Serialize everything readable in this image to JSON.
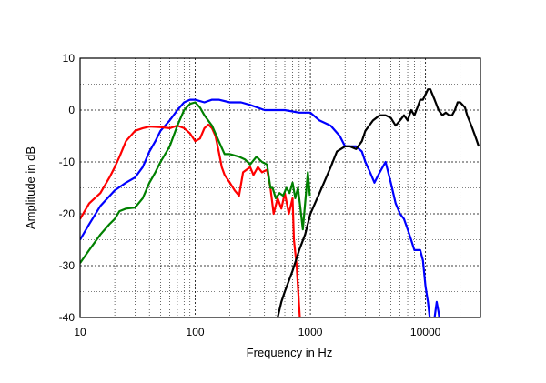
{
  "chart_data": {
    "type": "line",
    "title": "",
    "xlabel": "Frequency in Hz",
    "ylabel": "Amplitude in dB",
    "x_scale": "log",
    "xlim": [
      10,
      30000
    ],
    "ylim": [
      -40,
      10
    ],
    "x_ticks": [
      10,
      100,
      1000,
      10000
    ],
    "x_tick_labels": [
      "10",
      "100",
      "1000",
      "10000"
    ],
    "y_ticks": [
      10,
      0,
      -10,
      -20,
      -30,
      -40
    ],
    "y_tick_labels": [
      "10",
      "0",
      "-10",
      "-20",
      "-30",
      "-40"
    ],
    "grid": true,
    "legend": false,
    "series": [
      {
        "color": "#0000ff",
        "points": [
          [
            10,
            -25
          ],
          [
            12,
            -22
          ],
          [
            15,
            -18.5
          ],
          [
            20,
            -15.5
          ],
          [
            25,
            -14
          ],
          [
            30,
            -13
          ],
          [
            35,
            -11
          ],
          [
            40,
            -8
          ],
          [
            45,
            -6
          ],
          [
            50,
            -4
          ],
          [
            60,
            -2
          ],
          [
            70,
            0
          ],
          [
            80,
            1.5
          ],
          [
            90,
            2
          ],
          [
            100,
            2
          ],
          [
            120,
            1.5
          ],
          [
            140,
            2
          ],
          [
            160,
            2
          ],
          [
            200,
            1.5
          ],
          [
            250,
            1.5
          ],
          [
            300,
            1
          ],
          [
            400,
            0
          ],
          [
            500,
            0
          ],
          [
            600,
            0
          ],
          [
            800,
            -0.5
          ],
          [
            1000,
            -0.5
          ],
          [
            1200,
            -2
          ],
          [
            1500,
            -3
          ],
          [
            1800,
            -5
          ],
          [
            2000,
            -7
          ],
          [
            2500,
            -7
          ],
          [
            2800,
            -8
          ],
          [
            3000,
            -10
          ],
          [
            3300,
            -12
          ],
          [
            3600,
            -14
          ],
          [
            4000,
            -12
          ],
          [
            4500,
            -10
          ],
          [
            5000,
            -14
          ],
          [
            5500,
            -18
          ],
          [
            6000,
            -20
          ],
          [
            6500,
            -21
          ],
          [
            7000,
            -23
          ],
          [
            7500,
            -25
          ],
          [
            8000,
            -27
          ],
          [
            9000,
            -27
          ],
          [
            9500,
            -29
          ],
          [
            10000,
            -34
          ],
          [
            10500,
            -37
          ],
          [
            11000,
            -41
          ],
          [
            12000,
            -40
          ],
          [
            12500,
            -37
          ],
          [
            13000,
            -39
          ],
          [
            13500,
            -42
          ]
        ]
      },
      {
        "color": "#ff0000",
        "points": [
          [
            10,
            -21
          ],
          [
            12,
            -18
          ],
          [
            15,
            -16
          ],
          [
            18,
            -13
          ],
          [
            20,
            -11
          ],
          [
            22,
            -9
          ],
          [
            25,
            -6
          ],
          [
            30,
            -4
          ],
          [
            35,
            -3.5
          ],
          [
            40,
            -3.2
          ],
          [
            50,
            -3.3
          ],
          [
            60,
            -3.5
          ],
          [
            70,
            -3
          ],
          [
            80,
            -3.5
          ],
          [
            90,
            -4.5
          ],
          [
            100,
            -6
          ],
          [
            110,
            -5.5
          ],
          [
            120,
            -3.5
          ],
          [
            130,
            -2.8
          ],
          [
            140,
            -3.5
          ],
          [
            150,
            -5
          ],
          [
            160,
            -8
          ],
          [
            170,
            -11
          ],
          [
            180,
            -12.5
          ],
          [
            200,
            -14
          ],
          [
            220,
            -15.5
          ],
          [
            240,
            -16.5
          ],
          [
            260,
            -12
          ],
          [
            300,
            -11
          ],
          [
            320,
            -12.5
          ],
          [
            350,
            -11
          ],
          [
            380,
            -12
          ],
          [
            420,
            -11.5
          ],
          [
            450,
            -15
          ],
          [
            480,
            -20
          ],
          [
            520,
            -17
          ],
          [
            560,
            -19
          ],
          [
            600,
            -16
          ],
          [
            650,
            -20
          ],
          [
            700,
            -17
          ],
          [
            720,
            -25
          ],
          [
            760,
            -30
          ],
          [
            790,
            -36
          ],
          [
            820,
            -42
          ]
        ]
      },
      {
        "color": "#008000",
        "points": [
          [
            10,
            -29.5
          ],
          [
            12,
            -27
          ],
          [
            15,
            -24
          ],
          [
            18,
            -22
          ],
          [
            20,
            -21
          ],
          [
            22,
            -19.5
          ],
          [
            25,
            -19
          ],
          [
            30,
            -18.8
          ],
          [
            35,
            -17
          ],
          [
            40,
            -14
          ],
          [
            45,
            -12
          ],
          [
            50,
            -10
          ],
          [
            60,
            -7
          ],
          [
            70,
            -3
          ],
          [
            80,
            0
          ],
          [
            90,
            1.2
          ],
          [
            100,
            1.5
          ],
          [
            110,
            0.5
          ],
          [
            120,
            -1
          ],
          [
            140,
            -3
          ],
          [
            160,
            -6
          ],
          [
            180,
            -8.5
          ],
          [
            200,
            -8.5
          ],
          [
            240,
            -9
          ],
          [
            270,
            -9.5
          ],
          [
            300,
            -10.5
          ],
          [
            340,
            -9
          ],
          [
            380,
            -10
          ],
          [
            420,
            -10.5
          ],
          [
            450,
            -15
          ],
          [
            470,
            -15
          ],
          [
            500,
            -17
          ],
          [
            540,
            -16
          ],
          [
            580,
            -16.5
          ],
          [
            620,
            -15
          ],
          [
            660,
            -16
          ],
          [
            700,
            -14
          ],
          [
            740,
            -17
          ],
          [
            780,
            -15
          ],
          [
            820,
            -19
          ],
          [
            860,
            -23
          ],
          [
            900,
            -18
          ],
          [
            950,
            -12
          ],
          [
            990,
            -16.5
          ]
        ]
      },
      {
        "color": "#000000",
        "points": [
          [
            520,
            -40
          ],
          [
            560,
            -37
          ],
          [
            600,
            -35
          ],
          [
            700,
            -31
          ],
          [
            800,
            -27
          ],
          [
            900,
            -24
          ],
          [
            1000,
            -20
          ],
          [
            1200,
            -16
          ],
          [
            1500,
            -11
          ],
          [
            1700,
            -8
          ],
          [
            2000,
            -7
          ],
          [
            2200,
            -7
          ],
          [
            2500,
            -7.5
          ],
          [
            2800,
            -6
          ],
          [
            3000,
            -4
          ],
          [
            3500,
            -2
          ],
          [
            4000,
            -1
          ],
          [
            4500,
            -1
          ],
          [
            5000,
            -1.5
          ],
          [
            5500,
            -3
          ],
          [
            6000,
            -2
          ],
          [
            6500,
            -1
          ],
          [
            7000,
            -2
          ],
          [
            7500,
            0
          ],
          [
            8000,
            -1
          ],
          [
            8500,
            0.5
          ],
          [
            9000,
            2
          ],
          [
            9500,
            2
          ],
          [
            10000,
            3
          ],
          [
            10500,
            4
          ],
          [
            11000,
            4
          ],
          [
            12000,
            2
          ],
          [
            13000,
            0
          ],
          [
            14000,
            -1
          ],
          [
            15000,
            -0.5
          ],
          [
            16000,
            -1
          ],
          [
            17000,
            -1
          ],
          [
            18000,
            0
          ],
          [
            19000,
            1.5
          ],
          [
            20000,
            1.5
          ],
          [
            21000,
            1
          ],
          [
            22000,
            0.5
          ],
          [
            23000,
            -1
          ],
          [
            25000,
            -3
          ],
          [
            27000,
            -5
          ],
          [
            28000,
            -6
          ],
          [
            29000,
            -7
          ]
        ]
      }
    ]
  }
}
